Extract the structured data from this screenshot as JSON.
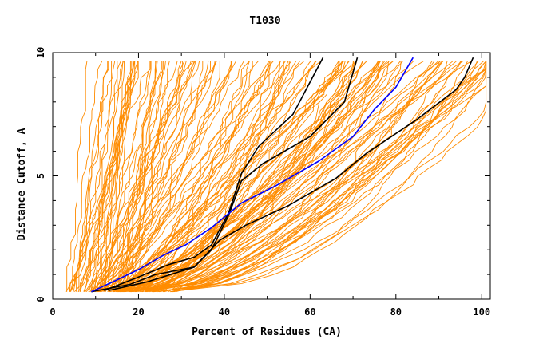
{
  "chart_data": {
    "type": "line",
    "title": "T1030",
    "xlabel": "Percent of Residues (CA)",
    "ylabel": "Distance Cutoff, A",
    "xlim": [
      0,
      102
    ],
    "ylim": [
      0,
      10
    ],
    "x_ticks": [
      0,
      20,
      40,
      60,
      80,
      100
    ],
    "y_ticks": [
      0,
      5,
      10
    ],
    "grid": false,
    "legend": "none",
    "colors": {
      "background_models": "#ff8c00",
      "highlight": "#000000",
      "reference": "#0000ff",
      "axes": "#000000"
    },
    "background_model_count": 150,
    "highlighted_series": [
      {
        "color": "#000000",
        "points": [
          [
            9,
            0.3
          ],
          [
            18,
            0.6
          ],
          [
            24,
            1.0
          ],
          [
            33,
            1.3
          ],
          [
            37,
            2.0
          ],
          [
            41,
            3.4
          ],
          [
            44,
            4.8
          ],
          [
            49,
            5.5
          ],
          [
            60,
            6.6
          ],
          [
            68,
            8.0
          ],
          [
            71,
            9.8
          ]
        ]
      },
      {
        "color": "#000000",
        "points": [
          [
            12,
            0.35
          ],
          [
            20,
            0.9
          ],
          [
            27,
            1.4
          ],
          [
            33,
            1.7
          ],
          [
            37,
            2.2
          ],
          [
            41,
            3.5
          ],
          [
            44,
            5.1
          ],
          [
            48,
            6.2
          ],
          [
            56,
            7.5
          ],
          [
            63,
            9.8
          ]
        ]
      },
      {
        "color": "#000000",
        "points": [
          [
            13,
            0.35
          ],
          [
            22,
            0.7
          ],
          [
            33,
            1.3
          ],
          [
            39,
            2.4
          ],
          [
            45,
            3.0
          ],
          [
            55,
            3.8
          ],
          [
            66,
            4.9
          ],
          [
            73,
            5.9
          ],
          [
            85,
            7.3
          ],
          [
            94,
            8.5
          ],
          [
            96,
            9.0
          ],
          [
            98,
            9.8
          ]
        ]
      },
      {
        "color": "#0000ff",
        "points": [
          [
            9,
            0.3
          ],
          [
            14,
            0.7
          ],
          [
            20,
            1.2
          ],
          [
            26,
            1.8
          ],
          [
            31,
            2.2
          ],
          [
            37,
            2.9
          ],
          [
            44,
            3.9
          ],
          [
            52,
            4.6
          ],
          [
            62,
            5.6
          ],
          [
            70,
            6.6
          ],
          [
            75,
            7.7
          ],
          [
            80,
            8.6
          ],
          [
            84,
            9.8
          ]
        ]
      }
    ]
  }
}
